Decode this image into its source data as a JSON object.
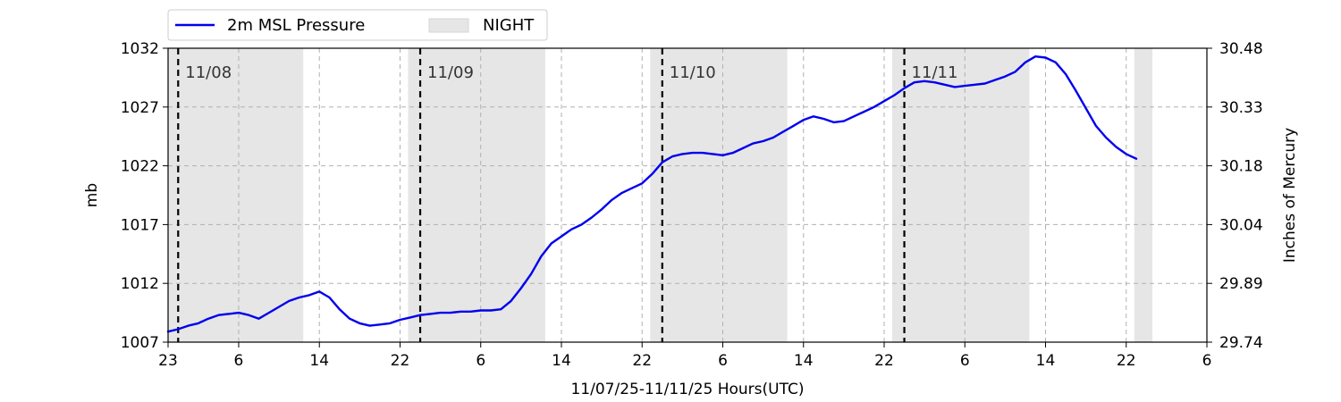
{
  "chart_data": {
    "type": "line",
    "xlabel": "11/07/25-11/11/25  Hours(UTC)",
    "ylabel": "mb",
    "ylabel_right": "Inches of Mercury",
    "x_units": "hours since 11/07/25 23:00 UTC",
    "xlim": [
      0,
      103
    ],
    "ylim": [
      1007,
      1032
    ],
    "x_ticks": [
      {
        "x": 0,
        "label": "23"
      },
      {
        "x": 7,
        "label": "6"
      },
      {
        "x": 15,
        "label": "14"
      },
      {
        "x": 23,
        "label": "22"
      },
      {
        "x": 31,
        "label": "6"
      },
      {
        "x": 39,
        "label": "14"
      },
      {
        "x": 47,
        "label": "22"
      },
      {
        "x": 55,
        "label": "6"
      },
      {
        "x": 63,
        "label": "14"
      },
      {
        "x": 71,
        "label": "22"
      },
      {
        "x": 79,
        "label": "6"
      },
      {
        "x": 87,
        "label": "14"
      },
      {
        "x": 95,
        "label": "22"
      },
      {
        "x": 103,
        "label": "6"
      }
    ],
    "y_ticks_left": [
      {
        "y": 1007,
        "label": "1007"
      },
      {
        "y": 1012,
        "label": "1012"
      },
      {
        "y": 1017,
        "label": "1017"
      },
      {
        "y": 1022,
        "label": "1022"
      },
      {
        "y": 1027,
        "label": "1027"
      },
      {
        "y": 1032,
        "label": "1032"
      }
    ],
    "y_ticks_right": [
      {
        "y": 1007,
        "label": "29.74"
      },
      {
        "y": 1012,
        "label": "29.89"
      },
      {
        "y": 1017,
        "label": "30.04"
      },
      {
        "y": 1022,
        "label": "30.18"
      },
      {
        "y": 1027,
        "label": "30.33"
      },
      {
        "y": 1032,
        "label": "30.48"
      }
    ],
    "grid": true,
    "legend": {
      "placement": "top-left",
      "entries": [
        {
          "label": "2m MSL Pressure",
          "color": "#0000ee",
          "kind": "line"
        },
        {
          "label": "NIGHT",
          "color": "#e6e6e6",
          "kind": "patch"
        }
      ]
    },
    "night_bands": [
      [
        0,
        13.4
      ],
      [
        23.8,
        37.4
      ],
      [
        47.8,
        61.4
      ],
      [
        71.8,
        85.4
      ],
      [
        95.8,
        97.6
      ]
    ],
    "day_markers": [
      {
        "x": 1,
        "label": "11/08"
      },
      {
        "x": 25,
        "label": "11/09"
      },
      {
        "x": 49,
        "label": "11/10"
      },
      {
        "x": 73,
        "label": "11/11"
      }
    ],
    "series": [
      {
        "name": "2m MSL Pressure",
        "color": "#0000ee",
        "x": [
          0,
          1,
          2,
          3,
          4,
          5,
          6,
          7,
          8,
          9,
          10,
          11,
          12,
          13,
          14,
          15,
          16,
          17,
          18,
          19,
          20,
          21,
          22,
          23,
          24,
          25,
          26,
          27,
          28,
          29,
          30,
          31,
          32,
          33,
          34,
          35,
          36,
          37,
          38,
          39,
          40,
          41,
          42,
          43,
          44,
          45,
          46,
          47,
          48,
          49,
          50,
          51,
          52,
          53,
          54,
          55,
          56,
          57,
          58,
          59,
          60,
          61,
          62,
          63,
          64,
          65,
          66,
          67,
          68,
          69,
          70,
          71,
          72,
          73,
          74,
          75,
          76,
          77,
          78,
          79,
          80,
          81,
          82,
          83,
          84,
          85,
          86,
          87,
          88,
          89,
          90,
          91,
          92,
          93,
          94,
          95,
          96
        ],
        "values": [
          1007.9,
          1008.1,
          1008.4,
          1008.6,
          1009.0,
          1009.3,
          1009.4,
          1009.5,
          1009.3,
          1009.0,
          1009.5,
          1010.0,
          1010.5,
          1010.8,
          1011.0,
          1011.3,
          1010.8,
          1009.8,
          1009.0,
          1008.6,
          1008.4,
          1008.5,
          1008.6,
          1008.9,
          1009.1,
          1009.3,
          1009.4,
          1009.5,
          1009.5,
          1009.6,
          1009.6,
          1009.7,
          1009.7,
          1009.8,
          1010.5,
          1011.6,
          1012.8,
          1014.3,
          1015.4,
          1016.0,
          1016.6,
          1017.0,
          1017.6,
          1018.3,
          1019.1,
          1019.7,
          1020.1,
          1020.5,
          1021.3,
          1022.3,
          1022.8,
          1023.0,
          1023.1,
          1023.1,
          1023.0,
          1022.9,
          1023.1,
          1023.5,
          1023.9,
          1024.1,
          1024.4,
          1024.9,
          1025.4,
          1025.9,
          1026.2,
          1026.0,
          1025.7,
          1025.8,
          1026.2,
          1026.6,
          1027.0,
          1027.5,
          1028.0,
          1028.6,
          1029.1,
          1029.2,
          1029.1,
          1028.9,
          1028.7,
          1028.8,
          1028.9,
          1029.0,
          1029.3,
          1029.6,
          1030.0,
          1030.8,
          1031.3,
          1031.2,
          1030.8,
          1029.8,
          1028.4,
          1026.9,
          1025.4,
          1024.4,
          1023.6,
          1023.0,
          1022.6
        ]
      }
    ]
  }
}
